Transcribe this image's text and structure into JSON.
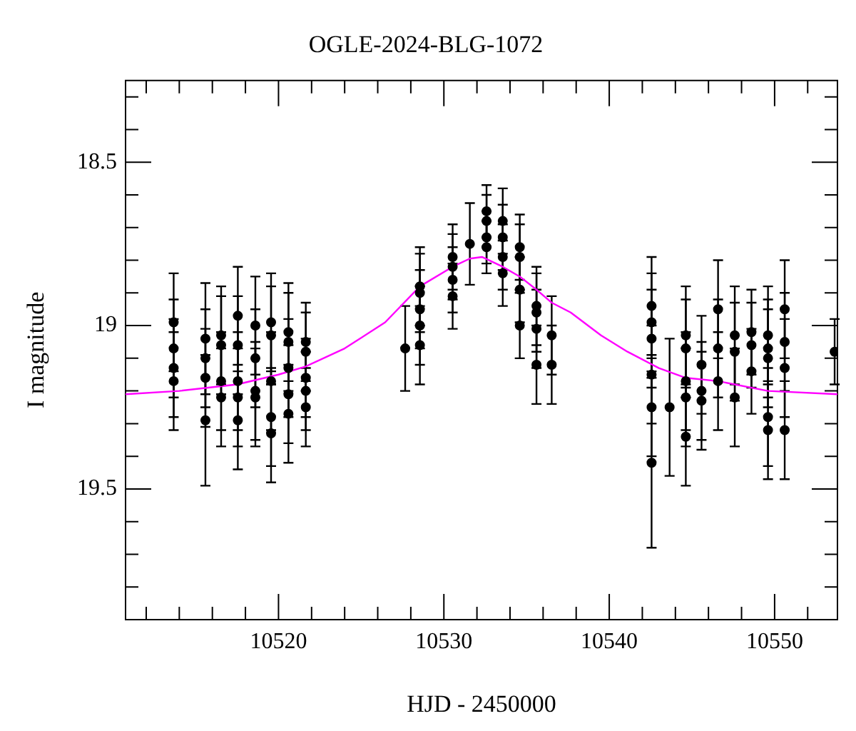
{
  "chart_data": {
    "type": "scatter",
    "title": "OGLE-2024-BLG-1072",
    "xlabel": "HJD - 2450000",
    "ylabel": "I magnitude",
    "xlim": [
      10510.75,
      10553.8
    ],
    "ylim": [
      19.9,
      18.25
    ],
    "xticks": [
      {
        "value": 10512,
        "label": null
      },
      {
        "value": 10514,
        "label": null
      },
      {
        "value": 10516,
        "label": null
      },
      {
        "value": 10518,
        "label": null
      },
      10520,
      {
        "value": 10522,
        "label": null
      },
      {
        "value": 10524,
        "label": null
      },
      {
        "value": 10526,
        "label": null
      },
      {
        "value": 10528,
        "label": null
      },
      10530,
      {
        "value": 10532,
        "label": null
      },
      {
        "value": 10534,
        "label": null
      },
      {
        "value": 10536,
        "label": null
      },
      {
        "value": 10538,
        "label": null
      },
      10540,
      {
        "value": 10542,
        "label": null
      },
      {
        "value": 10544,
        "label": null
      },
      {
        "value": 10546,
        "label": null
      },
      {
        "value": 10548,
        "label": null
      },
      10550,
      {
        "value": 10552,
        "label": null
      }
    ],
    "yticks": [
      {
        "value": 18.3,
        "label": null
      },
      {
        "value": 18.4,
        "label": null
      },
      18.5,
      {
        "value": 18.6,
        "label": null
      },
      {
        "value": 18.7,
        "label": null
      },
      {
        "value": 18.8,
        "label": null
      },
      {
        "value": 18.9,
        "label": null
      },
      19,
      {
        "value": 19.1,
        "label": null
      },
      {
        "value": 19.2,
        "label": null
      },
      {
        "value": 19.3,
        "label": null
      },
      {
        "value": 19.4,
        "label": null
      },
      19.5,
      {
        "value": 19.6,
        "label": null
      },
      {
        "value": 19.7,
        "label": null
      },
      {
        "value": 19.8,
        "label": null
      },
      {
        "value": 19.9,
        "label": null
      }
    ],
    "grid": false,
    "legend": false,
    "series": [
      {
        "color": "#000000",
        "marker": "circle",
        "x": [
          10513.66,
          10513.66,
          10513.66,
          10513.66,
          10515.58,
          10515.58,
          10515.58,
          10515.58,
          10516.53,
          10516.53,
          10516.53,
          10516.53,
          10517.54,
          10517.54,
          10517.54,
          10517.54,
          10517.54,
          10518.6,
          10518.6,
          10518.6,
          10518.6,
          10519.55,
          10519.55,
          10519.55,
          10519.55,
          10519.55,
          10520.6,
          10520.6,
          10520.6,
          10520.6,
          10520.6,
          10521.65,
          10521.65,
          10521.65,
          10521.65,
          10521.65,
          10527.66,
          10528.55,
          10528.55,
          10528.55,
          10528.55,
          10528.55,
          10530.53,
          10530.53,
          10530.53,
          10530.53,
          10531.57,
          10532.58,
          10532.58,
          10532.58,
          10532.58,
          10533.56,
          10533.56,
          10533.56,
          10533.56,
          10534.59,
          10534.59,
          10534.59,
          10534.59,
          10535.6,
          10535.6,
          10535.6,
          10535.6,
          10536.52,
          10536.52,
          10542.56,
          10542.56,
          10542.56,
          10542.56,
          10542.56,
          10542.56,
          10543.65,
          10544.63,
          10544.63,
          10544.63,
          10544.63,
          10544.63,
          10545.58,
          10545.58,
          10545.58,
          10546.58,
          10546.58,
          10546.58,
          10547.59,
          10547.59,
          10547.59,
          10548.6,
          10548.6,
          10548.6,
          10549.6,
          10549.6,
          10549.6,
          10549.6,
          10549.6,
          10550.61,
          10550.61,
          10550.61,
          10550.61,
          10553.63
        ],
        "values": [
          18.99,
          19.07,
          19.13,
          19.17,
          19.04,
          19.1,
          19.16,
          19.29,
          19.03,
          19.06,
          19.17,
          19.22,
          18.97,
          19.06,
          19.17,
          19.22,
          19.29,
          19.0,
          19.1,
          19.2,
          19.22,
          18.99,
          19.03,
          19.17,
          19.28,
          19.33,
          19.02,
          19.05,
          19.13,
          19.21,
          19.27,
          19.05,
          19.08,
          19.16,
          19.2,
          19.25,
          19.07,
          18.88,
          18.9,
          18.95,
          19.0,
          19.06,
          18.79,
          18.82,
          18.86,
          18.91,
          18.75,
          18.65,
          18.68,
          18.73,
          18.76,
          18.68,
          18.73,
          18.79,
          18.84,
          18.76,
          18.79,
          18.89,
          19.0,
          18.94,
          18.96,
          19.01,
          19.12,
          19.03,
          19.12,
          18.94,
          18.99,
          19.04,
          19.15,
          19.25,
          19.42,
          19.25,
          19.03,
          19.07,
          19.17,
          19.22,
          19.34,
          19.12,
          19.2,
          19.23,
          18.95,
          19.07,
          19.17,
          19.03,
          19.08,
          19.22,
          19.02,
          19.06,
          19.14,
          19.03,
          19.07,
          19.1,
          19.28,
          19.32,
          18.95,
          19.05,
          19.13,
          19.32,
          19.08
        ],
        "errors": [
          0.15,
          0.15,
          0.15,
          0.15,
          0.17,
          0.15,
          0.15,
          0.2,
          0.15,
          0.15,
          0.15,
          0.15,
          0.15,
          0.15,
          0.15,
          0.15,
          0.15,
          0.15,
          0.15,
          0.15,
          0.15,
          0.15,
          0.15,
          0.15,
          0.15,
          0.15,
          0.15,
          0.15,
          0.15,
          0.15,
          0.15,
          0.12,
          0.12,
          0.12,
          0.12,
          0.12,
          0.13,
          0.12,
          0.12,
          0.12,
          0.12,
          0.12,
          0.1,
          0.1,
          0.1,
          0.1,
          0.125,
          0.08,
          0.08,
          0.08,
          0.08,
          0.1,
          0.1,
          0.1,
          0.1,
          0.1,
          0.1,
          0.1,
          0.1,
          0.12,
          0.12,
          0.12,
          0.12,
          0.12,
          0.12,
          0.15,
          0.15,
          0.15,
          0.15,
          0.15,
          0.26,
          0.21,
          0.15,
          0.15,
          0.15,
          0.15,
          0.15,
          0.15,
          0.15,
          0.15,
          0.15,
          0.15,
          0.15,
          0.15,
          0.15,
          0.15,
          0.13,
          0.13,
          0.13,
          0.15,
          0.15,
          0.15,
          0.15,
          0.15,
          0.15,
          0.15,
          0.15,
          0.15,
          0.1
        ]
      },
      {
        "type": "line",
        "color": "#ff00ff",
        "marker": "none",
        "x": [
          10510.75,
          10514,
          10517.5,
          10520,
          10521.65,
          10524,
          10526.45,
          10528.55,
          10530.53,
          10531.57,
          10532.3,
          10533.56,
          10534.59,
          10535.6,
          10536.52,
          10537.67,
          10539.5,
          10541.1,
          10543,
          10544.63,
          10546.58,
          10549.6,
          10553.8
        ],
        "values": [
          19.21,
          19.2,
          19.18,
          19.15,
          19.125,
          19.07,
          18.99,
          18.88,
          18.82,
          18.795,
          18.79,
          18.82,
          18.85,
          18.89,
          18.93,
          18.96,
          19.03,
          19.08,
          19.13,
          19.16,
          19.17,
          19.2,
          19.21
        ]
      }
    ]
  }
}
